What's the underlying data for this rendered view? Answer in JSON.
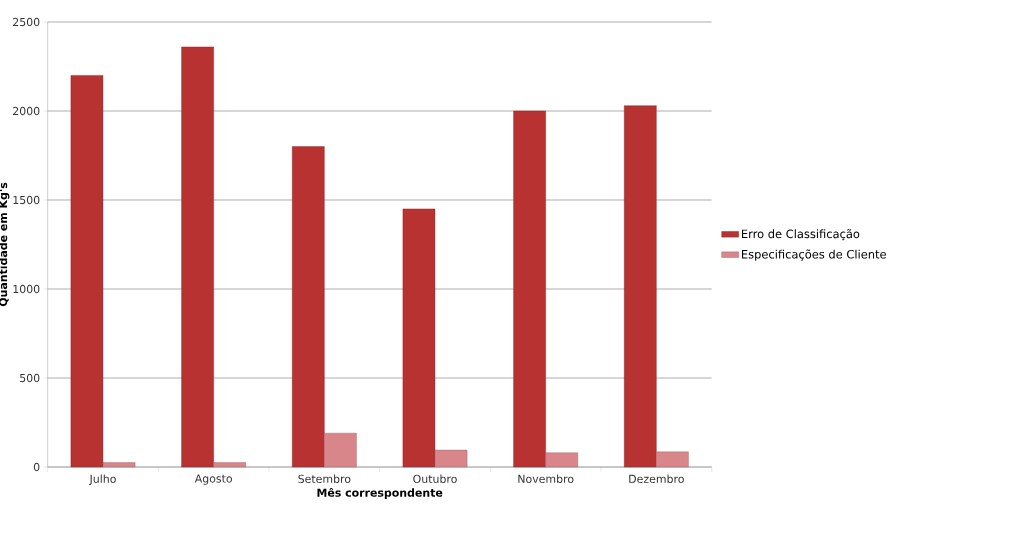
{
  "chart_data": {
    "type": "bar",
    "xlabel": "Mês correspondente",
    "ylabel": "Quantidade em Kg's",
    "categories": [
      "Julho",
      "Agosto",
      "Setembro",
      "Outubro",
      "Novembro",
      "Dezembro"
    ],
    "series": [
      {
        "name": "Erro de Classificação",
        "color": "#b83232",
        "values": [
          2200,
          2360,
          1800,
          1450,
          2000,
          2030
        ]
      },
      {
        "name": "Especificações de Cliente",
        "color": "#d9868a",
        "values": [
          25,
          25,
          190,
          95,
          80,
          85
        ]
      }
    ],
    "ylim": [
      0,
      2500
    ],
    "yticks": [
      0,
      500,
      1000,
      1500,
      2000,
      2500
    ],
    "grid": "y",
    "legend": "right"
  }
}
